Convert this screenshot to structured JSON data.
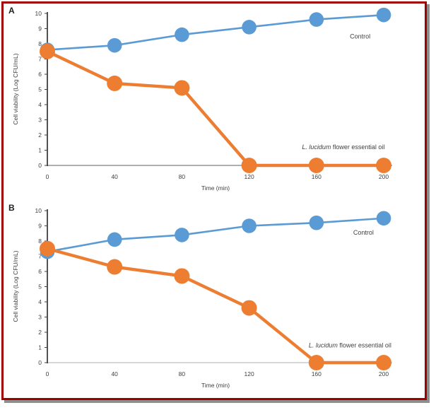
{
  "window": {
    "background": "#ffffff",
    "frame_border_color": "#a00000",
    "frame_shadow_color": "#8e8e8e"
  },
  "chart_data": [
    {
      "type": "line",
      "panel_label": "A",
      "title": "",
      "xlabel": "Time (min)",
      "ylabel": "Cell viability (Log CFU/mL)",
      "x": [
        0,
        40,
        80,
        120,
        160,
        200
      ],
      "xticks": [
        "0",
        "40",
        "80",
        "120",
        "160",
        "200"
      ],
      "yticks": [
        0,
        1,
        2,
        3,
        4,
        5,
        6,
        7,
        8,
        9,
        10
      ],
      "xlim": [
        0,
        200
      ],
      "ylim": [
        0,
        10
      ],
      "grid": false,
      "legend_position": "inline-text-labels",
      "series": [
        {
          "name": "Control",
          "color": "#5b9bd5",
          "values": [
            7.6,
            7.9,
            8.6,
            9.1,
            9.6,
            9.9
          ],
          "label_parts": [
            {
              "text": "Control",
              "italic": false
            }
          ],
          "label_anchor": {
            "x": 186,
            "y": 8.5
          }
        },
        {
          "name": "L. lucidum flower essential oil",
          "color": "#ed7d31",
          "values": [
            7.5,
            5.4,
            5.1,
            0,
            0,
            0
          ],
          "label_parts": [
            {
              "text": "L. lucidum",
              "italic": true
            },
            {
              "text": " flower essential oil",
              "italic": false
            }
          ],
          "label_anchor": {
            "x": 176,
            "y": 1.2
          }
        }
      ]
    },
    {
      "type": "line",
      "panel_label": "B",
      "title": "",
      "xlabel": "Time (min)",
      "ylabel": "Cell viability (Log CFU/mL)",
      "x": [
        0,
        40,
        80,
        120,
        160,
        200
      ],
      "xticks": [
        "0",
        "40",
        "80",
        "120",
        "160",
        "200"
      ],
      "yticks": [
        0,
        1,
        2,
        3,
        4,
        5,
        6,
        7,
        8,
        9,
        10
      ],
      "xlim": [
        0,
        200
      ],
      "ylim": [
        0,
        10
      ],
      "grid": false,
      "legend_position": "inline-text-labels",
      "series": [
        {
          "name": "Control",
          "color": "#5b9bd5",
          "values": [
            7.3,
            8.1,
            8.4,
            9.0,
            9.2,
            9.5
          ],
          "label_parts": [
            {
              "text": "Control",
              "italic": false
            }
          ],
          "label_anchor": {
            "x": 188,
            "y": 8.55
          }
        },
        {
          "name": "L. lucidum flower essential oil",
          "color": "#ed7d31",
          "values": [
            7.5,
            6.3,
            5.7,
            3.6,
            0,
            0
          ],
          "label_parts": [
            {
              "text": "L. lucidum",
              "italic": true
            },
            {
              "text": " flower essential oil",
              "italic": false
            }
          ],
          "label_anchor": {
            "x": 180,
            "y": 1.15
          }
        }
      ]
    }
  ]
}
